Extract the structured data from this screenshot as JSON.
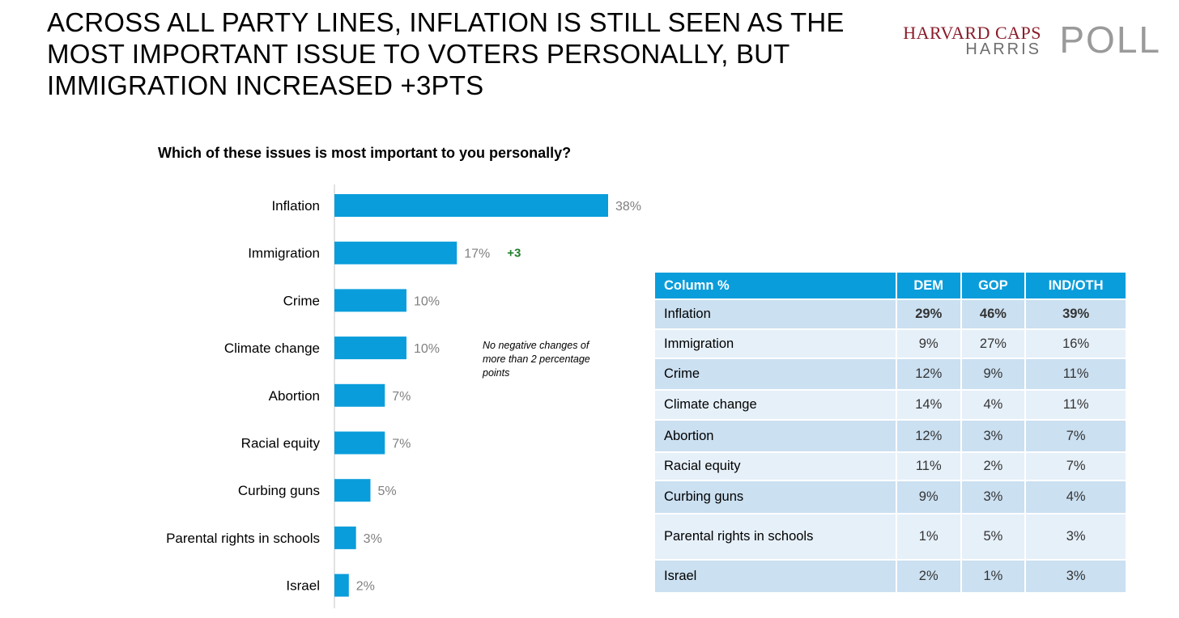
{
  "headline": "ACROSS ALL PARTY LINES, INFLATION IS STILL SEEN AS THE MOST IMPORTANT ISSUE TO VOTERS PERSONALLY, BUT IMMIGRATION INCREASED +3PTS",
  "logo": {
    "top": "HARVARD CAPS",
    "harris": "HARRIS",
    "poll": "POLL"
  },
  "colors": {
    "bar": "#0a9ddb",
    "change_positive": "#1e7f2b",
    "table_header": "#0a9ddb"
  },
  "chart_data": {
    "type": "bar",
    "orientation": "horizontal",
    "title": "Which of these issues is most important to you personally?",
    "categories": [
      "Inflation",
      "Immigration",
      "Crime",
      "Climate change",
      "Abortion",
      "Racial equity",
      "Curbing guns",
      "Parental rights in schools",
      "Israel"
    ],
    "values": [
      38,
      17,
      10,
      10,
      7,
      7,
      5,
      3,
      2
    ],
    "value_labels": [
      "38%",
      "17%",
      "10%",
      "10%",
      "7%",
      "7%",
      "5%",
      "3%",
      "2%"
    ],
    "changes": [
      "",
      "+3",
      "",
      "",
      "",
      "",
      "",
      "",
      ""
    ],
    "xlim": [
      0,
      38
    ],
    "grid": false
  },
  "annotation": "No negative changes of more than 2 percentage points",
  "table": {
    "headers": [
      "Column %",
      "DEM",
      "GOP",
      "IND/OTH"
    ],
    "rows": [
      [
        "Inflation",
        "29%",
        "46%",
        "39%"
      ],
      [
        "Immigration",
        "9%",
        "27%",
        "16%"
      ],
      [
        "Crime",
        "12%",
        "9%",
        "11%"
      ],
      [
        "Climate change",
        "14%",
        "4%",
        "11%"
      ],
      [
        "Abortion",
        "12%",
        "3%",
        "7%"
      ],
      [
        "Racial equity",
        "11%",
        "2%",
        "7%"
      ],
      [
        "Curbing guns",
        "9%",
        "3%",
        "4%"
      ],
      [
        "Parental rights in schools",
        "1%",
        "5%",
        "3%"
      ],
      [
        "Israel",
        "2%",
        "1%",
        "3%"
      ]
    ]
  }
}
